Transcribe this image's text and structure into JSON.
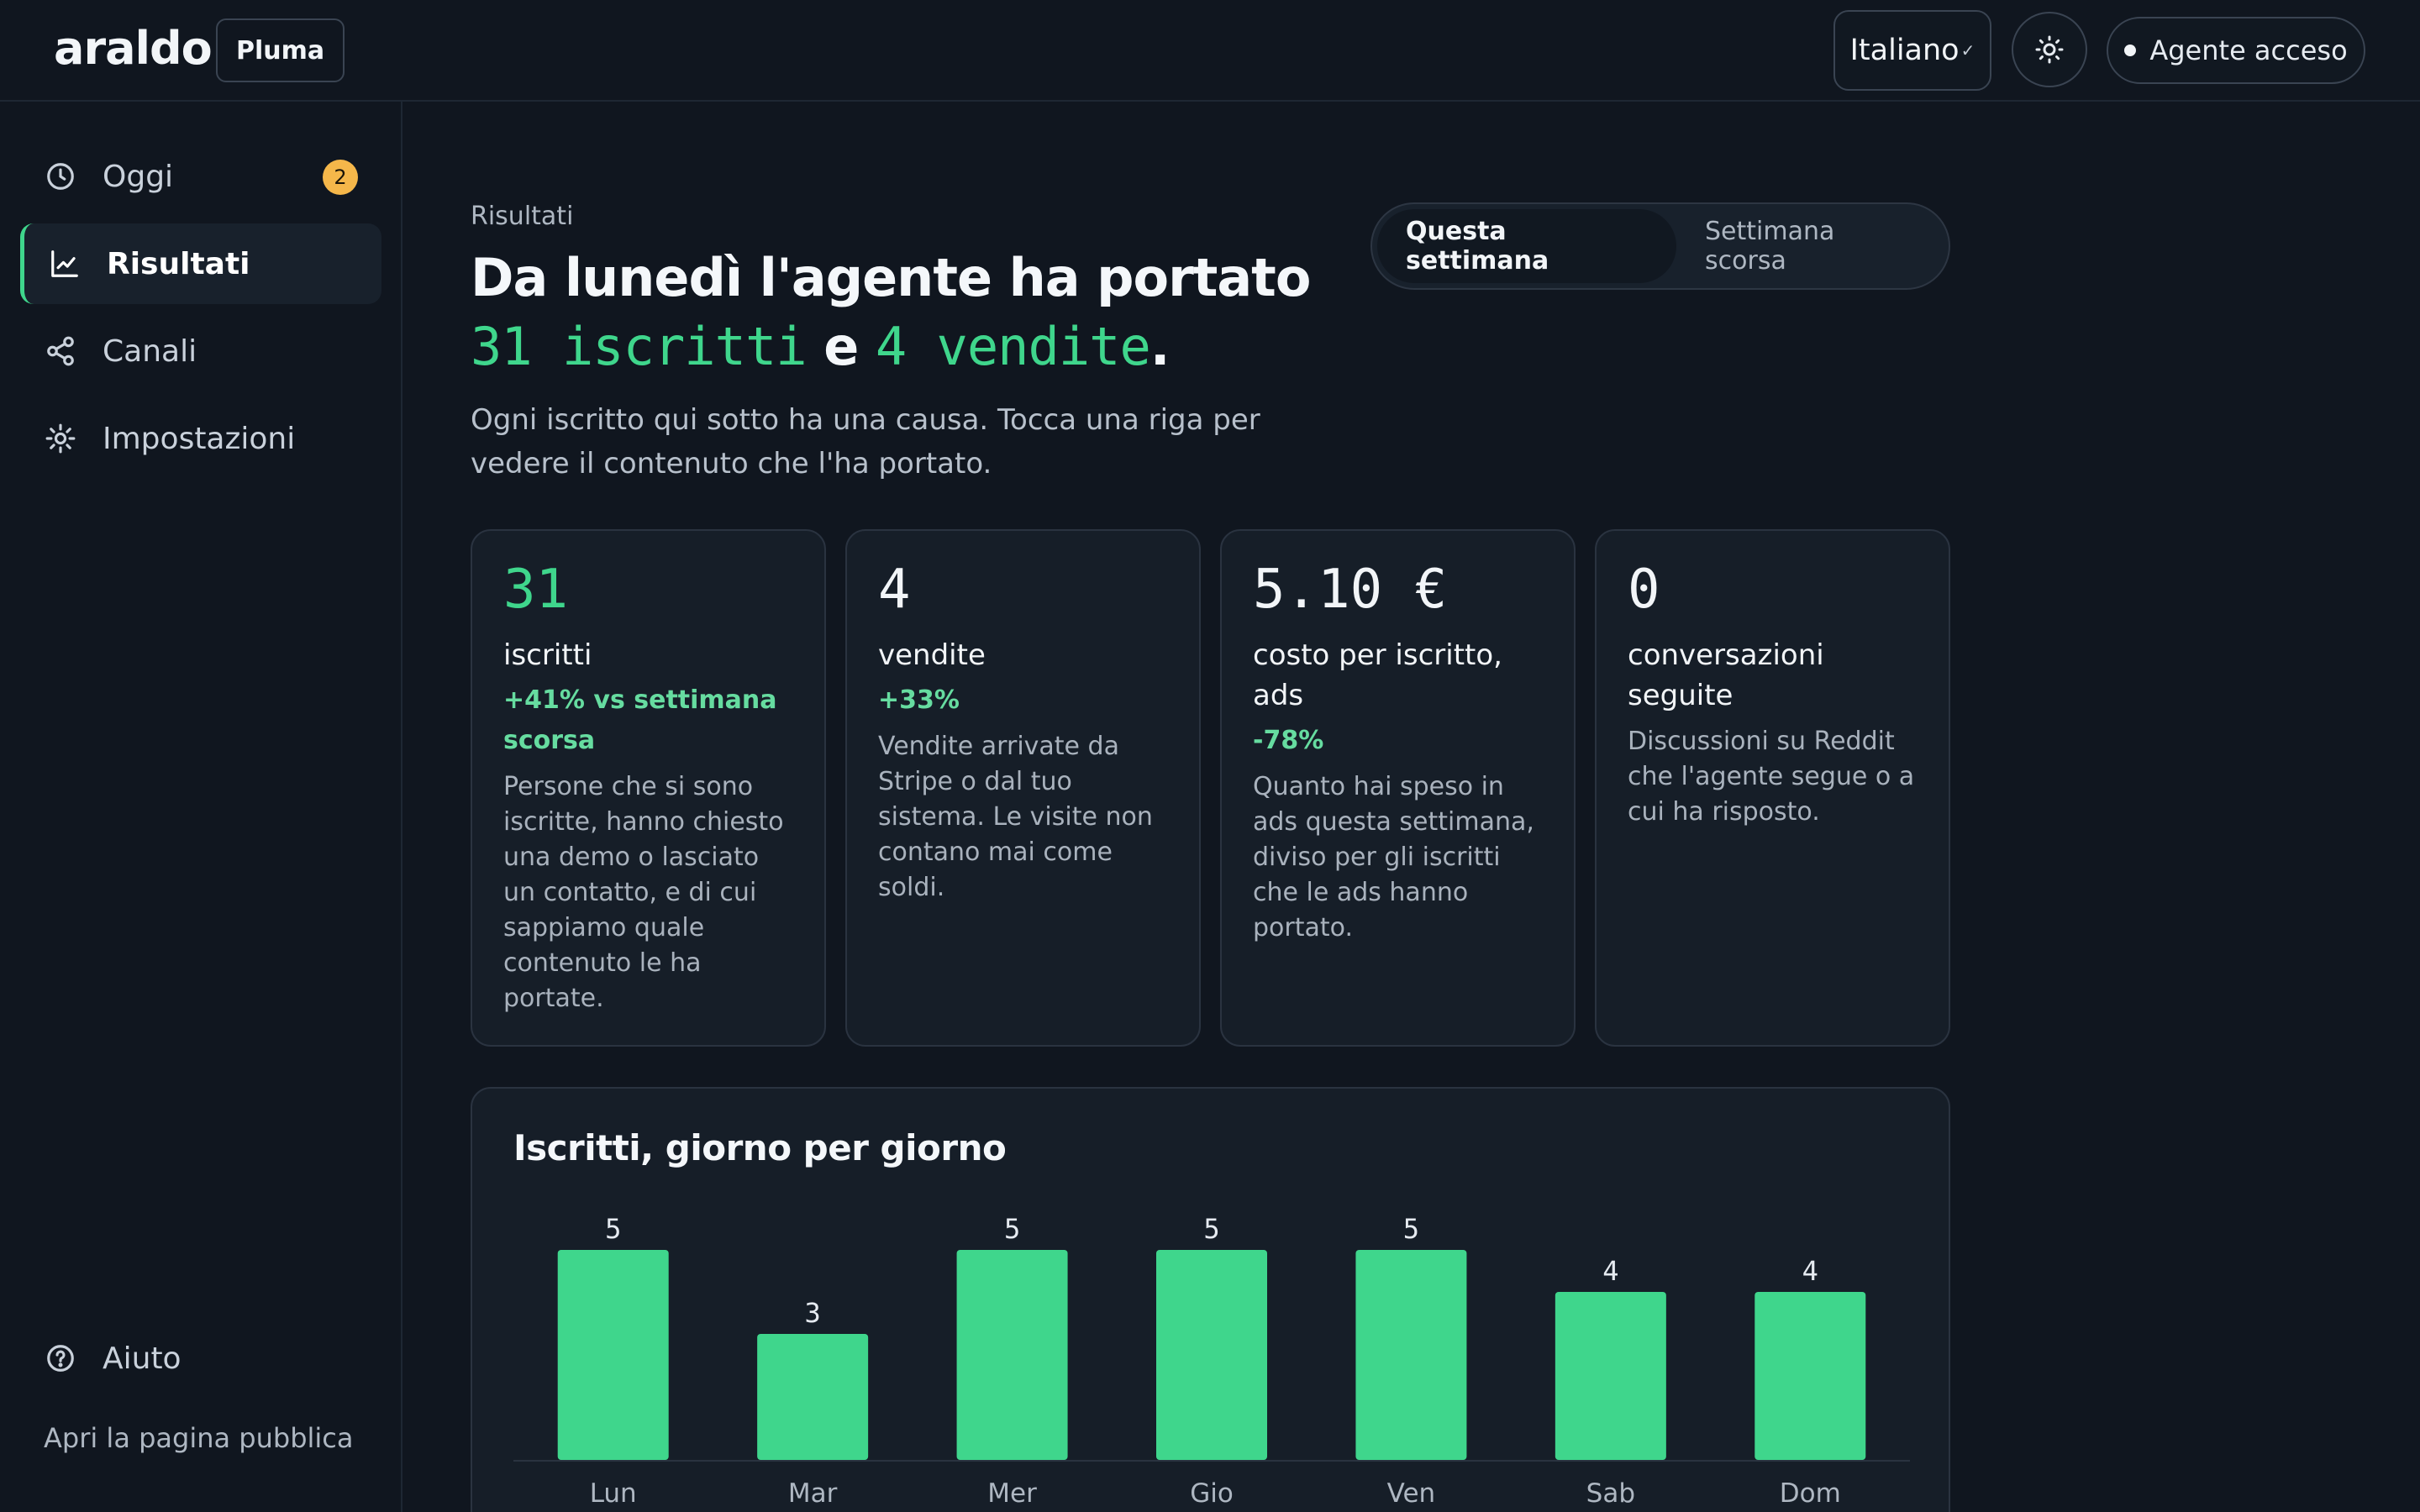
{
  "app": {
    "logo": "araldo",
    "workspace": "Pluma",
    "language": "Italiano",
    "agent_status": "Agente acceso",
    "theme_icon": "sun-icon"
  },
  "sidebar": {
    "items": [
      {
        "label": "Oggi",
        "icon": "clock-icon",
        "badge": "2"
      },
      {
        "label": "Risultati",
        "icon": "chart-icon",
        "active": true
      },
      {
        "label": "Canali",
        "icon": "share-icon"
      },
      {
        "label": "Impostazioni",
        "icon": "gear-icon"
      }
    ],
    "help": {
      "label": "Aiuto",
      "icon": "help-icon"
    },
    "public_link": "Apri la pagina pubblica"
  },
  "main": {
    "eyebrow": "Risultati",
    "headline": {
      "line1": "Da lunedì l'agente ha portato",
      "signups": "31 iscritti",
      "conj": "e",
      "sales": "4 vendite",
      "end": "."
    },
    "subtitle": "Ogni iscritto qui sotto ha una causa. Tocca una riga per vedere il contenuto che l'ha portato.",
    "period": {
      "options": [
        "Questa settimana",
        "Settimana scorsa"
      ],
      "selected": "Questa settimana"
    },
    "stats": [
      {
        "value": "31",
        "label": "iscritti",
        "delta": "+41% vs settimana scorsa",
        "desc": "Persone che si sono iscritte, hanno chiesto una demo o lasciato un contatto, e di cui sappiamo quale contenuto le ha portate."
      },
      {
        "value": "4",
        "label": "vendite",
        "delta": "+33%",
        "desc": "Vendite arrivate da Stripe o dal tuo sistema. Le visite non contano mai come soldi."
      },
      {
        "value": "5.10 €",
        "label": "costo per iscritto, ads",
        "delta": "-78%",
        "desc": "Quanto hai speso in ads questa settimana, diviso per gli iscritti che le ads hanno portato."
      },
      {
        "value": "0",
        "label": "conversazioni seguite",
        "delta": "",
        "desc": "Discussioni su Reddit che l'agente segue o a cui ha risposto."
      }
    ]
  },
  "colors": {
    "accent": "#3fd68c",
    "badge": "#f5b74a",
    "background": "#10161f",
    "card": "#161e28"
  },
  "chart_data": {
    "type": "bar",
    "title": "Iscritti, giorno per giorno",
    "categories": [
      "Lun",
      "Mar",
      "Mer",
      "Gio",
      "Ven",
      "Sab",
      "Dom"
    ],
    "values": [
      5,
      3,
      5,
      5,
      5,
      4,
      4
    ],
    "ylim": [
      0,
      5
    ],
    "grid": false,
    "color": "#3fd68c"
  }
}
